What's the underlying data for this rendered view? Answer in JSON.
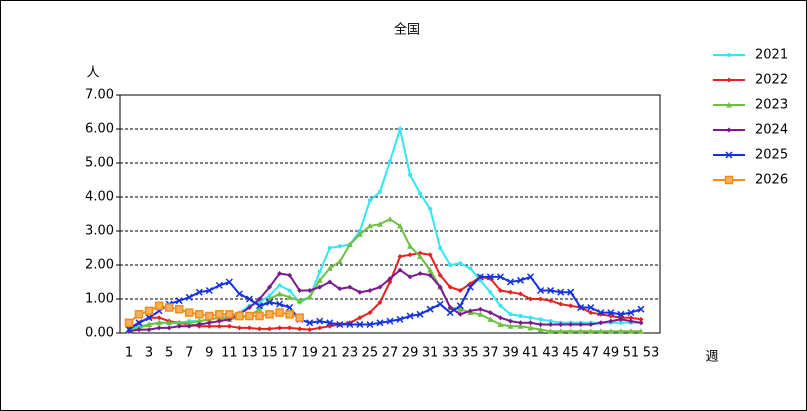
{
  "chart_data": {
    "type": "line",
    "title": "全国",
    "y_label": "人",
    "x_label": "週",
    "categories": [
      1,
      null,
      3,
      null,
      5,
      null,
      7,
      null,
      9,
      null,
      11,
      null,
      13,
      null,
      15,
      null,
      17,
      null,
      19,
      null,
      21,
      null,
      23,
      null,
      25,
      null,
      27,
      null,
      29,
      null,
      31,
      null,
      33,
      null,
      35,
      null,
      37,
      null,
      39,
      null,
      41,
      null,
      43,
      null,
      45,
      null,
      47,
      null,
      49,
      null,
      51,
      null,
      53
    ],
    "ylim": [
      0,
      7
    ],
    "yticks": [
      {
        "value": 0,
        "label": "0.00"
      },
      {
        "value": 1,
        "label": "1.00"
      },
      {
        "value": 2,
        "label": "2.00"
      },
      {
        "value": 3,
        "label": "3.00"
      },
      {
        "value": 4,
        "label": "4.00"
      },
      {
        "value": 5,
        "label": "5.00"
      },
      {
        "value": 6,
        "label": "6.00"
      },
      {
        "value": 7,
        "label": "7.00"
      }
    ],
    "grid": true,
    "series": [
      {
        "name": "2021",
        "color": "#33e6f2",
        "marker": "circle",
        "values": [
          0.1,
          0.2,
          0.25,
          0.3,
          0.3,
          0.3,
          0.35,
          0.35,
          0.4,
          0.45,
          0.5,
          0.6,
          0.8,
          0.9,
          1.1,
          1.4,
          1.25,
          0.9,
          1.05,
          1.8,
          2.5,
          2.55,
          2.6,
          3.0,
          3.9,
          4.15,
          5.05,
          6.0,
          4.65,
          4.1,
          3.65,
          2.5,
          2.0,
          2.05,
          1.9,
          1.55,
          1.2,
          0.8,
          0.55,
          0.5,
          0.45,
          0.4,
          0.35,
          0.3,
          0.3,
          0.3,
          0.3,
          0.3,
          0.3,
          0.3,
          0.3,
          0.3,
          null
        ]
      },
      {
        "name": "2022",
        "color": "#e8201e",
        "marker": "diamond",
        "values": [
          0.15,
          0.3,
          0.45,
          0.45,
          0.35,
          0.3,
          0.25,
          0.2,
          0.2,
          0.2,
          0.2,
          0.15,
          0.15,
          0.12,
          0.12,
          0.15,
          0.15,
          0.12,
          0.1,
          0.15,
          0.2,
          0.25,
          0.3,
          0.45,
          0.6,
          0.9,
          1.5,
          2.25,
          2.3,
          2.35,
          2.3,
          1.7,
          1.35,
          1.25,
          1.45,
          1.65,
          1.6,
          1.25,
          1.2,
          1.15,
          1.0,
          1.0,
          0.95,
          0.85,
          0.8,
          0.75,
          0.6,
          0.55,
          0.5,
          0.45,
          0.45,
          0.4,
          null
        ]
      },
      {
        "name": "2023",
        "color": "#6dc044",
        "marker": "triangle",
        "values": [
          0.05,
          0.15,
          0.25,
          0.3,
          0.3,
          0.3,
          0.3,
          0.35,
          0.4,
          0.45,
          0.4,
          0.45,
          0.5,
          0.7,
          1.0,
          1.15,
          1.05,
          0.95,
          1.05,
          1.55,
          1.9,
          2.1,
          2.6,
          2.9,
          3.15,
          3.2,
          3.35,
          3.15,
          2.55,
          2.25,
          1.85,
          1.35,
          0.75,
          0.7,
          0.6,
          0.55,
          0.4,
          0.25,
          0.2,
          0.2,
          0.15,
          0.1,
          0.05,
          0.05,
          0.05,
          0.05,
          0.05,
          0.05,
          0.05,
          0.05,
          0.05,
          0.05,
          null
        ]
      },
      {
        "name": "2024",
        "color": "#7b1a8f",
        "marker": "diamond",
        "values": [
          0.05,
          0.1,
          0.1,
          0.15,
          0.15,
          0.2,
          0.2,
          0.25,
          0.3,
          0.35,
          0.4,
          0.55,
          0.75,
          1.0,
          1.35,
          1.75,
          1.7,
          1.25,
          1.25,
          1.35,
          1.5,
          1.3,
          1.35,
          1.2,
          1.25,
          1.35,
          1.6,
          1.85,
          1.65,
          1.75,
          1.7,
          1.35,
          0.75,
          0.55,
          0.65,
          0.7,
          0.6,
          0.45,
          0.35,
          0.3,
          0.3,
          0.25,
          0.25,
          0.25,
          0.25,
          0.25,
          0.25,
          0.3,
          0.35,
          0.4,
          0.35,
          0.3,
          null
        ]
      },
      {
        "name": "2025",
        "color": "#1432e0",
        "marker": "x",
        "values": [
          0.1,
          0.3,
          0.45,
          0.65,
          0.85,
          0.95,
          1.05,
          1.2,
          1.25,
          1.4,
          1.5,
          1.15,
          1.0,
          0.8,
          0.9,
          0.85,
          0.75,
          0.4,
          0.3,
          0.35,
          0.3,
          0.25,
          0.25,
          0.25,
          0.25,
          0.3,
          0.35,
          0.4,
          0.5,
          0.55,
          0.7,
          0.85,
          0.6,
          0.8,
          1.35,
          1.65,
          1.65,
          1.65,
          1.5,
          1.55,
          1.65,
          1.25,
          1.25,
          1.2,
          1.2,
          0.75,
          0.75,
          0.6,
          0.6,
          0.55,
          0.6,
          0.7,
          null
        ]
      },
      {
        "name": "2026",
        "color": "#f28c1a",
        "marker": "square",
        "values": [
          0.3,
          0.55,
          0.65,
          0.8,
          0.75,
          0.7,
          0.6,
          0.55,
          0.5,
          0.55,
          0.55,
          0.5,
          0.5,
          0.5,
          0.55,
          0.6,
          0.55,
          0.45,
          null,
          null,
          null,
          null,
          null,
          null,
          null,
          null,
          null,
          null,
          null,
          null,
          null,
          null,
          null,
          null,
          null,
          null,
          null,
          null,
          null,
          null,
          null,
          null,
          null,
          null,
          null,
          null,
          null,
          null,
          null,
          null,
          null,
          null,
          null
        ]
      }
    ]
  }
}
